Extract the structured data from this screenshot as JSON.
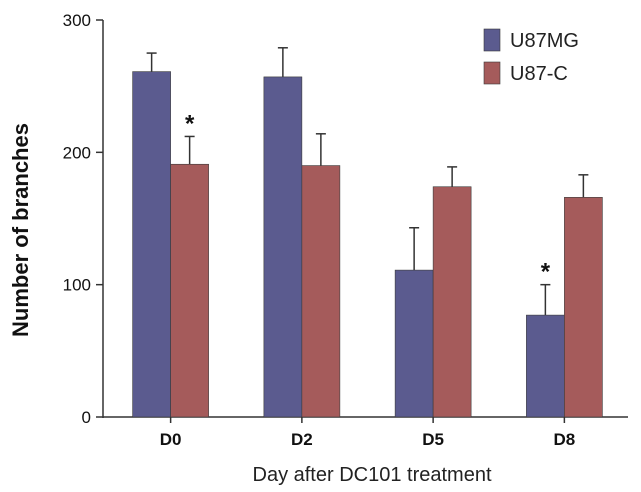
{
  "chart_data": {
    "type": "bar",
    "categories": [
      "D0",
      "D2",
      "D5",
      "D8"
    ],
    "series": [
      {
        "name": "U87MG",
        "values": [
          261,
          257,
          111,
          77
        ],
        "errors": [
          14,
          22,
          32,
          23
        ],
        "color": "#5b5b8f"
      },
      {
        "name": "U87-C",
        "values": [
          191,
          190,
          174,
          166
        ],
        "errors": [
          21,
          24,
          15,
          17
        ],
        "color": "#a55b5b"
      }
    ],
    "annotations": [
      {
        "text": "*",
        "category": "D0",
        "series": "U87-C"
      },
      {
        "text": "*",
        "category": "D8",
        "series": "U87MG"
      }
    ],
    "title": "",
    "xlabel": "Day after DC101 treatment",
    "ylabel": "Number of branches",
    "ylim": [
      0,
      300
    ],
    "yticks": [
      0,
      100,
      200,
      300
    ],
    "legend": "top-right",
    "grid": false
  }
}
